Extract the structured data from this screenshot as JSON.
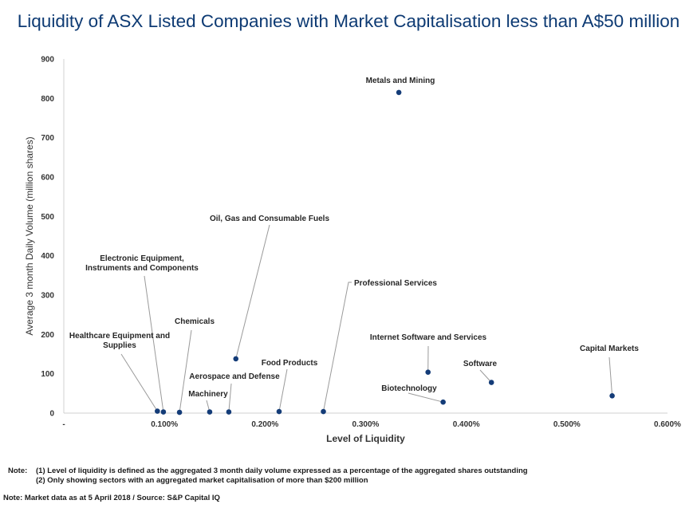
{
  "chart_data": {
    "type": "scatter",
    "title": "Liquidity of ASX Listed Companies with Market Capitalisation less than A$50 million",
    "xlabel": "Level of Liquidity",
    "ylabel": "Average 3 month Daily Volume (million shares)",
    "xlim": [
      0,
      0.6
    ],
    "ylim": [
      0,
      900
    ],
    "x_ticks": [
      {
        "value": 0,
        "label": "-"
      },
      {
        "value": 0.1,
        "label": "0.100%"
      },
      {
        "value": 0.2,
        "label": "0.200%"
      },
      {
        "value": 0.3,
        "label": "0.300%"
      },
      {
        "value": 0.4,
        "label": "0.400%"
      },
      {
        "value": 0.5,
        "label": "0.500%"
      },
      {
        "value": 0.6,
        "label": "0.600%"
      }
    ],
    "y_ticks": [
      {
        "value": 0,
        "label": "0"
      },
      {
        "value": 100,
        "label": "100"
      },
      {
        "value": 200,
        "label": "200"
      },
      {
        "value": 300,
        "label": "300"
      },
      {
        "value": 400,
        "label": "400"
      },
      {
        "value": 500,
        "label": "500"
      },
      {
        "value": 600,
        "label": "600"
      },
      {
        "value": 700,
        "label": "700"
      },
      {
        "value": 800,
        "label": "800"
      },
      {
        "value": 900,
        "label": "900"
      }
    ],
    "grid": false,
    "marker_color": "#143c78",
    "points": [
      {
        "label": [
          "Metals and Mining"
        ],
        "x": 0.333,
        "y": 815
      },
      {
        "label": [
          "Oil, Gas and Consumable Fuels"
        ],
        "x": 0.171,
        "y": 138
      },
      {
        "label": [
          "Electronic Equipment,",
          "Instruments and Components"
        ],
        "x": 0.099,
        "y": 3
      },
      {
        "label": [
          "Chemicals"
        ],
        "x": 0.115,
        "y": 2
      },
      {
        "label": [
          "Healthcare Equipment and",
          "Supplies"
        ],
        "x": 0.093,
        "y": 5
      },
      {
        "label": [
          "Aerospace and Defense"
        ],
        "x": 0.164,
        "y": 3
      },
      {
        "label": [
          "Machinery"
        ],
        "x": 0.145,
        "y": 3
      },
      {
        "label": [
          "Food Products"
        ],
        "x": 0.214,
        "y": 4
      },
      {
        "label": [
          "Professional Services"
        ],
        "x": 0.258,
        "y": 4
      },
      {
        "label": [
          "Internet Software and Services"
        ],
        "x": 0.362,
        "y": 104
      },
      {
        "label": [
          "Biotechnology"
        ],
        "x": 0.377,
        "y": 28
      },
      {
        "label": [
          "Software"
        ],
        "x": 0.425,
        "y": 78
      },
      {
        "label": [
          "Capital Markets"
        ],
        "x": 0.545,
        "y": 44
      }
    ]
  },
  "notes": {
    "prefix": "Note:",
    "lines": [
      "(1) Level of liquidity is defined as the aggregated 3 month daily volume expressed as a percentage of the aggregated shares outstanding",
      "(2) Only showing sectors with an aggregated market capitalisation of more than $200 million"
    ]
  },
  "source": "Note: Market data as at 5 April 2018 / Source: S&P Capital IQ"
}
